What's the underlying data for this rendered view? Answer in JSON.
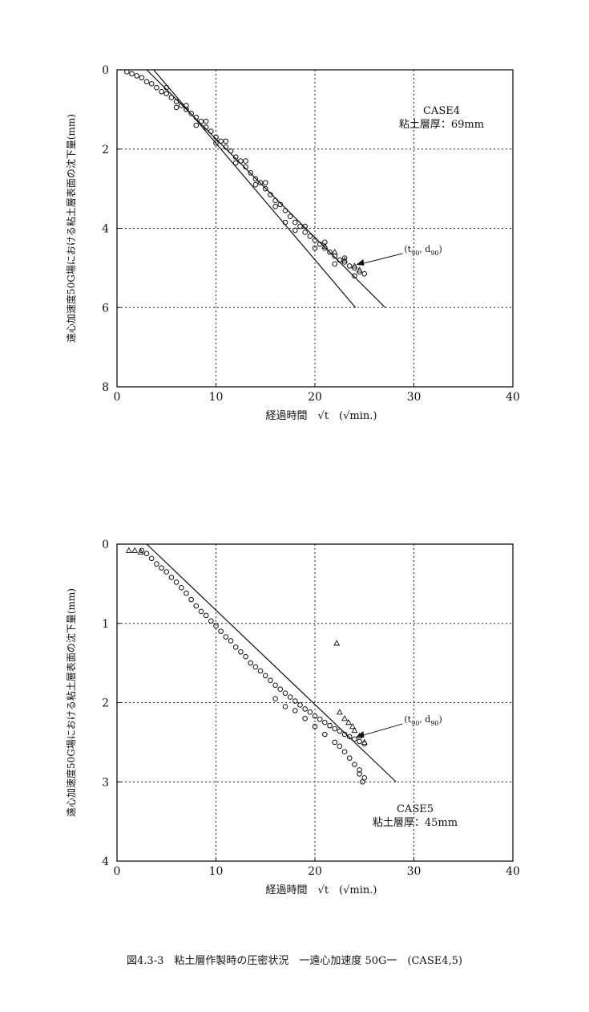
{
  "caption": "図4.3-3　粘土層作製時の圧密状況　一遠心加速度 50G一　(CASE4,5)",
  "chart_data": [
    {
      "type": "scatter",
      "case_title": "CASE4",
      "case_subtitle": "粘土層厚：69mm",
      "xlabel": "経過時間　√t　(√min.)",
      "ylabel": "遠心加速度50G場における粘土層表面の沈下量(mm)",
      "xlim": [
        0,
        40
      ],
      "ylim": [
        0,
        8
      ],
      "y_inverted": true,
      "x_ticks": [
        0,
        10,
        20,
        30,
        40
      ],
      "y_ticks": [
        0,
        2,
        4,
        6,
        8
      ],
      "grid": "dotted",
      "lines": [
        {
          "x": [
            3.7,
            24.1
          ],
          "y": [
            0,
            6.0
          ]
        },
        {
          "x": [
            3.0,
            27.1
          ],
          "y": [
            0,
            6.0
          ]
        }
      ],
      "series": [
        {
          "marker": "circle",
          "points": [
            [
              1.0,
              0.05
            ],
            [
              1.5,
              0.1
            ],
            [
              2.0,
              0.15
            ],
            [
              2.5,
              0.2
            ],
            [
              3.0,
              0.3
            ],
            [
              3.5,
              0.35
            ],
            [
              4.0,
              0.45
            ],
            [
              4.5,
              0.55
            ],
            [
              5.0,
              0.6
            ],
            [
              5.5,
              0.7
            ],
            [
              6.0,
              0.8
            ],
            [
              6.5,
              0.9
            ],
            [
              7.0,
              1.0
            ],
            [
              7.5,
              1.1
            ],
            [
              8.0,
              1.2
            ],
            [
              8.5,
              1.3
            ],
            [
              9.0,
              1.45
            ],
            [
              9.5,
              1.55
            ],
            [
              10.0,
              1.7
            ],
            [
              10.5,
              1.8
            ],
            [
              11.0,
              1.95
            ],
            [
              11.5,
              2.05
            ],
            [
              12.0,
              2.2
            ],
            [
              12.5,
              2.3
            ],
            [
              13.0,
              2.45
            ],
            [
              13.5,
              2.6
            ],
            [
              14.0,
              2.75
            ],
            [
              14.5,
              2.85
            ],
            [
              15.0,
              3.0
            ],
            [
              15.5,
              3.15
            ],
            [
              16.0,
              3.3
            ],
            [
              16.5,
              3.4
            ],
            [
              17.0,
              3.55
            ],
            [
              17.5,
              3.7
            ],
            [
              18.0,
              3.85
            ],
            [
              18.5,
              3.95
            ],
            [
              19.0,
              4.1
            ],
            [
              19.5,
              4.2
            ],
            [
              20.0,
              4.3
            ],
            [
              20.5,
              4.4
            ],
            [
              21.0,
              4.5
            ],
            [
              21.5,
              4.6
            ],
            [
              22.0,
              4.7
            ],
            [
              22.5,
              4.8
            ],
            [
              23.0,
              4.85
            ],
            [
              23.5,
              4.95
            ],
            [
              24.0,
              5.0
            ],
            [
              24.5,
              5.1
            ],
            [
              25.0,
              5.15
            ],
            [
              6.0,
              0.95
            ],
            [
              8.0,
              1.4
            ],
            [
              10.0,
              1.85
            ],
            [
              12.0,
              2.35
            ],
            [
              14.0,
              2.9
            ],
            [
              16.0,
              3.45
            ],
            [
              17.0,
              3.85
            ],
            [
              18.0,
              4.05
            ],
            [
              20.0,
              4.5
            ],
            [
              22.0,
              4.9
            ],
            [
              24.0,
              5.2
            ],
            [
              5.0,
              0.45
            ],
            [
              7.0,
              0.9
            ],
            [
              9.0,
              1.3
            ],
            [
              11.0,
              1.8
            ],
            [
              13.0,
              2.3
            ],
            [
              15.0,
              2.85
            ],
            [
              19.0,
              3.95
            ],
            [
              21.0,
              4.35
            ],
            [
              23.0,
              4.75
            ]
          ]
        },
        {
          "marker": "triangle",
          "points": [
            [
              21.0,
              4.45
            ],
            [
              22.0,
              4.6
            ],
            [
              23.0,
              4.8
            ],
            [
              24.0,
              4.95
            ],
            [
              24.5,
              5.05
            ]
          ]
        }
      ],
      "annotation": {
        "text": "(t",
        "sub1": "90",
        "mid": ", d",
        "sub2": "90",
        "end": ")",
        "x": 24.0,
        "y": 5.0
      }
    },
    {
      "type": "scatter",
      "case_title": "CASE5",
      "case_subtitle": "粘土層厚：45mm",
      "xlabel": "経過時間　√t　(√min.)",
      "ylabel": "遠心加速度50G場における粘土層表面の沈下量(mm)",
      "xlim": [
        0,
        40
      ],
      "ylim": [
        0,
        4
      ],
      "y_inverted": true,
      "x_ticks": [
        0,
        10,
        20,
        30,
        40
      ],
      "y_ticks": [
        0,
        1,
        2,
        3,
        4
      ],
      "grid": "dotted",
      "lines": [
        {
          "x": [
            3.0,
            28.2
          ],
          "y": [
            0,
            3.0
          ]
        }
      ],
      "series": [
        {
          "marker": "circle",
          "points": [
            [
              2.5,
              0.08
            ],
            [
              3.0,
              0.12
            ],
            [
              3.5,
              0.18
            ],
            [
              4.0,
              0.25
            ],
            [
              4.5,
              0.3
            ],
            [
              5.0,
              0.35
            ],
            [
              5.5,
              0.42
            ],
            [
              6.0,
              0.48
            ],
            [
              6.5,
              0.55
            ],
            [
              7.0,
              0.62
            ],
            [
              7.5,
              0.7
            ],
            [
              8.0,
              0.78
            ],
            [
              8.5,
              0.85
            ],
            [
              9.0,
              0.9
            ],
            [
              9.5,
              0.97
            ],
            [
              10.0,
              1.03
            ],
            [
              10.5,
              1.1
            ],
            [
              11.0,
              1.17
            ],
            [
              11.5,
              1.22
            ],
            [
              12.0,
              1.3
            ],
            [
              12.5,
              1.36
            ],
            [
              13.0,
              1.42
            ],
            [
              13.5,
              1.5
            ],
            [
              14.0,
              1.55
            ],
            [
              14.5,
              1.6
            ],
            [
              15.0,
              1.66
            ],
            [
              15.5,
              1.72
            ],
            [
              16.0,
              1.78
            ],
            [
              16.5,
              1.83
            ],
            [
              17.0,
              1.88
            ],
            [
              17.5,
              1.93
            ],
            [
              18.0,
              1.98
            ],
            [
              18.5,
              2.03
            ],
            [
              19.0,
              2.08
            ],
            [
              19.5,
              2.12
            ],
            [
              20.0,
              2.17
            ],
            [
              20.5,
              2.21
            ],
            [
              21.0,
              2.25
            ],
            [
              21.5,
              2.29
            ],
            [
              22.0,
              2.33
            ],
            [
              22.5,
              2.36
            ],
            [
              23.0,
              2.4
            ],
            [
              23.5,
              2.43
            ],
            [
              24.0,
              2.46
            ],
            [
              24.5,
              2.49
            ],
            [
              25.0,
              2.52
            ],
            [
              16.0,
              1.95
            ],
            [
              17.0,
              2.05
            ],
            [
              18.0,
              2.1
            ],
            [
              19.0,
              2.2
            ],
            [
              20.0,
              2.3
            ],
            [
              21.0,
              2.4
            ],
            [
              22.0,
              2.5
            ],
            [
              22.5,
              2.55
            ],
            [
              23.0,
              2.62
            ],
            [
              23.5,
              2.7
            ],
            [
              24.0,
              2.78
            ],
            [
              24.5,
              2.85
            ],
            [
              25.0,
              2.95
            ],
            [
              24.5,
              2.9
            ],
            [
              24.8,
              3.0
            ]
          ]
        },
        {
          "marker": "triangle",
          "points": [
            [
              1.2,
              0.08
            ],
            [
              1.8,
              0.08
            ],
            [
              2.4,
              0.1
            ],
            [
              22.2,
              1.25
            ],
            [
              22.5,
              2.12
            ],
            [
              23.0,
              2.2
            ],
            [
              23.4,
              2.25
            ],
            [
              23.8,
              2.3
            ],
            [
              24.0,
              2.35
            ],
            [
              24.5,
              2.42
            ],
            [
              25.0,
              2.5
            ]
          ]
        }
      ],
      "annotation": {
        "text": "(t",
        "sub1": "90",
        "mid": ", d",
        "sub2": "90",
        "end": ")",
        "x": 24.0,
        "y": 2.45
      }
    }
  ]
}
